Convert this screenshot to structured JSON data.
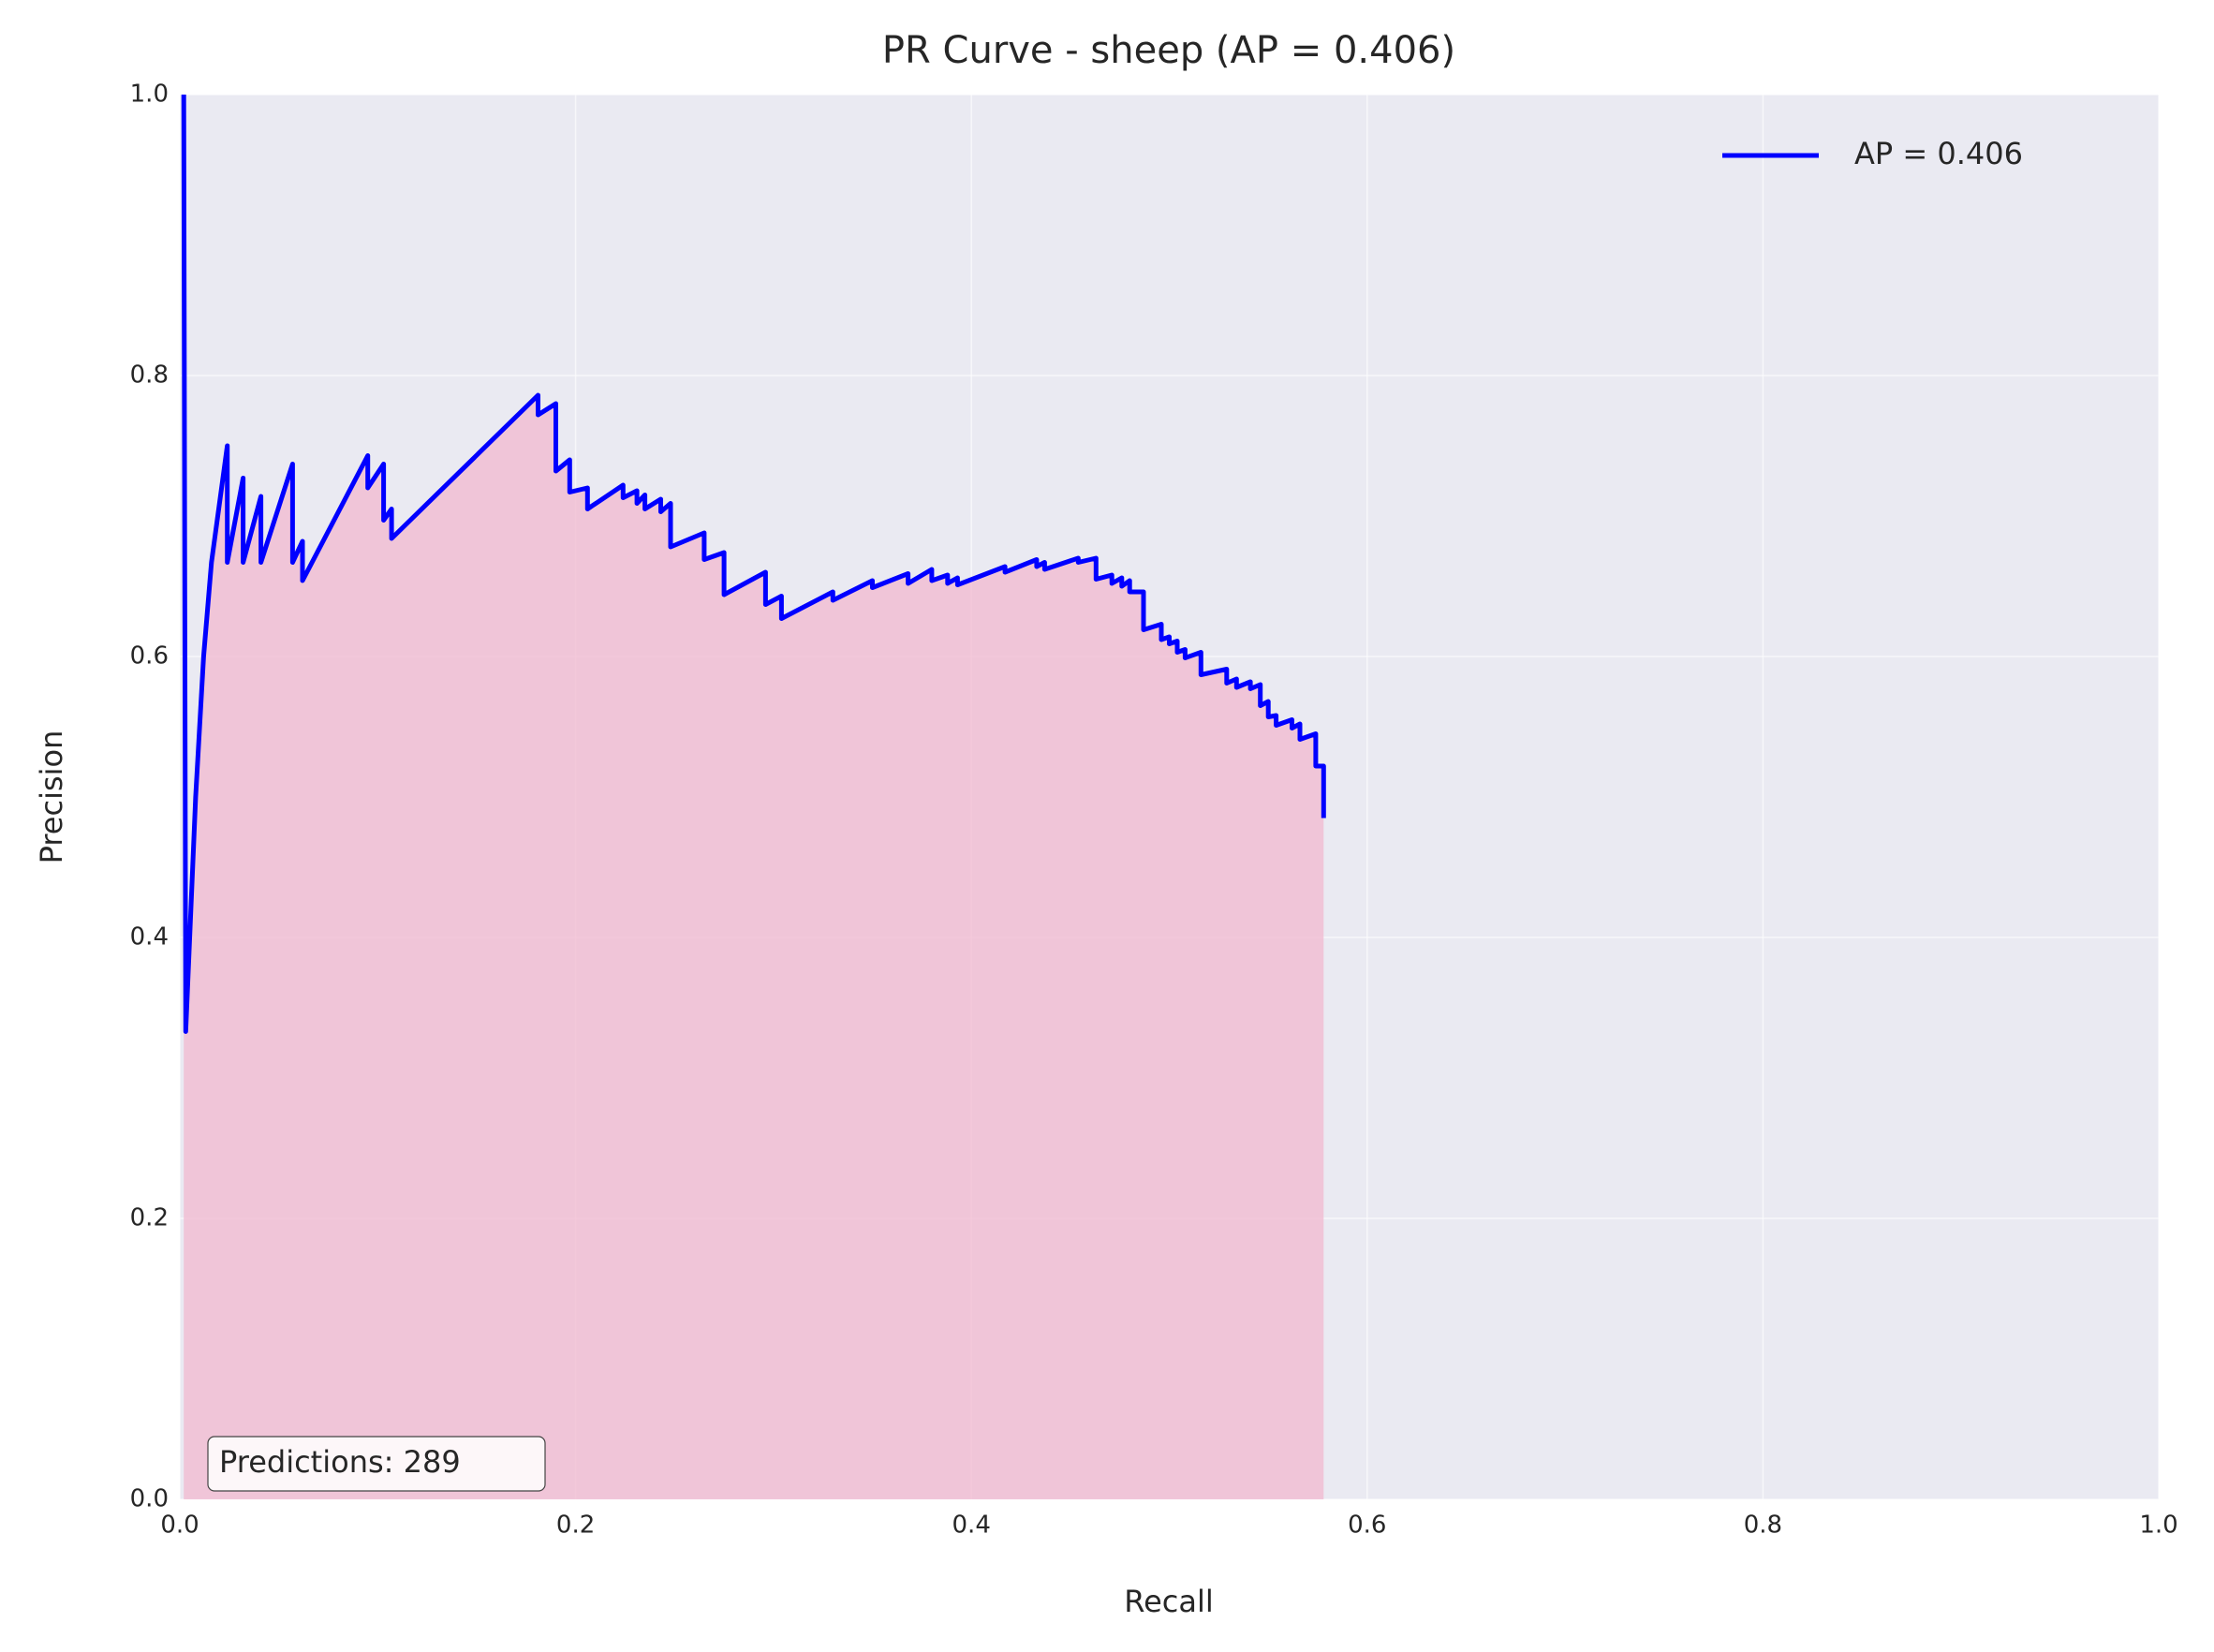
{
  "chart_data": {
    "type": "line",
    "title": "PR Curve - sheep (AP = 0.406)",
    "x_label": "Recall",
    "y_label": "Precision",
    "annotation": "Predictions: 289",
    "grid": true,
    "legend": "upper right",
    "fill_area": true,
    "fill_color": "#f2b8cf",
    "xlim": [
      0,
      1
    ],
    "ylim": [
      0,
      1
    ],
    "xticks": [
      {
        "value": 0,
        "label": "0.0"
      },
      0.2,
      0.4,
      0.6,
      0.8,
      {
        "value": 1,
        "label": "1.0"
      }
    ],
    "yticks": [
      {
        "value": 0,
        "label": "0.0"
      },
      0.2,
      0.4,
      0.6,
      0.8,
      {
        "value": 1,
        "label": "1.0"
      }
    ],
    "x": [
      0.002,
      0.003,
      0.008,
      0.012,
      0.016,
      0.024,
      0.024,
      0.032,
      0.032,
      0.041,
      0.041,
      0.057,
      0.057,
      0.062,
      0.062,
      0.095,
      0.095,
      0.103,
      0.103,
      0.107,
      0.107,
      0.181,
      0.181,
      0.19,
      0.19,
      0.197,
      0.197,
      0.206,
      0.206,
      0.224,
      0.224,
      0.231,
      0.231,
      0.235,
      0.235,
      0.243,
      0.243,
      0.248,
      0.248,
      0.265,
      0.265,
      0.275,
      0.275,
      0.296,
      0.296,
      0.304,
      0.304,
      0.33,
      0.33,
      0.35,
      0.35,
      0.368,
      0.368,
      0.38,
      0.38,
      0.388,
      0.388,
      0.393,
      0.393,
      0.417,
      0.417,
      0.433,
      0.433,
      0.437,
      0.437,
      0.454,
      0.454,
      0.463,
      0.463,
      0.471,
      0.471,
      0.476,
      0.476,
      0.48,
      0.48,
      0.487,
      0.487,
      0.496,
      0.496,
      0.5,
      0.5,
      0.504,
      0.504,
      0.508,
      0.508,
      0.516,
      0.516,
      0.529,
      0.529,
      0.534,
      0.534,
      0.541,
      0.541,
      0.546,
      0.546,
      0.55,
      0.55,
      0.554,
      0.554,
      0.562,
      0.562,
      0.566,
      0.566,
      0.574,
      0.574,
      0.578,
      0.578
    ],
    "series": [
      {
        "name": "AP = 0.406",
        "color": "#0000ff",
        "values": [
          1.0,
          0.333,
          0.5,
          0.6,
          0.667,
          0.75,
          0.667,
          0.727,
          0.667,
          0.714,
          0.667,
          0.737,
          0.667,
          0.682,
          0.654,
          0.743,
          0.72,
          0.737,
          0.697,
          0.705,
          0.684,
          0.786,
          0.772,
          0.78,
          0.732,
          0.74,
          0.717,
          0.72,
          0.705,
          0.722,
          0.713,
          0.718,
          0.709,
          0.715,
          0.705,
          0.712,
          0.703,
          0.709,
          0.678,
          0.688,
          0.669,
          0.674,
          0.644,
          0.66,
          0.637,
          0.643,
          0.627,
          0.646,
          0.64,
          0.654,
          0.649,
          0.659,
          0.652,
          0.662,
          0.654,
          0.658,
          0.652,
          0.656,
          0.651,
          0.664,
          0.66,
          0.669,
          0.664,
          0.667,
          0.662,
          0.67,
          0.667,
          0.67,
          0.655,
          0.658,
          0.652,
          0.656,
          0.65,
          0.654,
          0.646,
          0.646,
          0.619,
          0.623,
          0.612,
          0.614,
          0.609,
          0.611,
          0.603,
          0.605,
          0.599,
          0.603,
          0.587,
          0.591,
          0.581,
          0.584,
          0.578,
          0.582,
          0.577,
          0.58,
          0.565,
          0.568,
          0.557,
          0.558,
          0.551,
          0.555,
          0.549,
          0.552,
          0.541,
          0.545,
          0.522,
          0.522,
          0.485
        ]
      }
    ]
  }
}
